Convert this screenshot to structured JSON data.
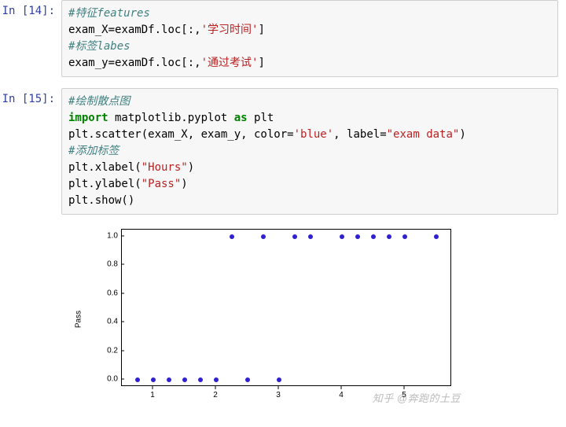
{
  "cells": [
    {
      "prompt": "In [14]:",
      "lines": [
        [
          {
            "t": "#特征features",
            "c": "c-comment"
          }
        ],
        [
          {
            "t": "exam_X",
            "c": "c-def"
          },
          {
            "t": "=",
            "c": "c-def"
          },
          {
            "t": "examDf.loc[:,",
            "c": "c-def"
          },
          {
            "t": "'学习时间'",
            "c": "c-str"
          },
          {
            "t": "]",
            "c": "c-def"
          }
        ],
        [
          {
            "t": "#标签labes",
            "c": "c-comment"
          }
        ],
        [
          {
            "t": "exam_y",
            "c": "c-def"
          },
          {
            "t": "=",
            "c": "c-def"
          },
          {
            "t": "examDf.loc[:,",
            "c": "c-def"
          },
          {
            "t": "'通过考试'",
            "c": "c-str"
          },
          {
            "t": "]",
            "c": "c-def"
          }
        ]
      ]
    },
    {
      "prompt": "In [15]:",
      "lines": [
        [
          {
            "t": "#绘制散点图",
            "c": "c-comment"
          }
        ],
        [
          {
            "t": "import",
            "c": "c-kw"
          },
          {
            "t": " matplotlib.pyplot ",
            "c": "c-def"
          },
          {
            "t": "as",
            "c": "c-kw"
          },
          {
            "t": " plt",
            "c": "c-def"
          }
        ],
        [
          {
            "t": "plt.scatter(exam_X, exam_y, color",
            "c": "c-def"
          },
          {
            "t": "=",
            "c": "c-def"
          },
          {
            "t": "'blue'",
            "c": "c-str"
          },
          {
            "t": ", label",
            "c": "c-def"
          },
          {
            "t": "=",
            "c": "c-def"
          },
          {
            "t": "\"exam data\"",
            "c": "c-str"
          },
          {
            "t": ")",
            "c": "c-def"
          }
        ],
        [
          {
            "t": "#添加标签",
            "c": "c-comment"
          }
        ],
        [
          {
            "t": "plt.xlabel(",
            "c": "c-def"
          },
          {
            "t": "\"Hours\"",
            "c": "c-str"
          },
          {
            "t": ")",
            "c": "c-def"
          }
        ],
        [
          {
            "t": "plt.ylabel(",
            "c": "c-def"
          },
          {
            "t": "\"Pass\"",
            "c": "c-str"
          },
          {
            "t": ")",
            "c": "c-def"
          }
        ],
        [
          {
            "t": "plt.show()",
            "c": "c-def"
          }
        ]
      ]
    }
  ],
  "chart": {
    "type": "scatter",
    "ylabel": "Pass",
    "xlim": [
      0.5,
      5.75
    ],
    "ylim": [
      -0.05,
      1.05
    ],
    "xticks": [
      1,
      2,
      3,
      4,
      5
    ],
    "yticks": [
      0.0,
      0.2,
      0.4,
      0.6,
      0.8,
      1.0
    ],
    "ytick_labels": [
      "0.0",
      "0.2",
      "0.4",
      "0.6",
      "0.8",
      "1.0"
    ],
    "xtick_labels": [
      "1",
      "2",
      "3",
      "4",
      "5"
    ],
    "dot_color": "#3020d0",
    "dot_size": 6,
    "border_color": "#000000",
    "background_color": "#ffffff",
    "label_fontsize": 10,
    "points": [
      {
        "x": 0.75,
        "y": 0
      },
      {
        "x": 1.0,
        "y": 0
      },
      {
        "x": 1.25,
        "y": 0
      },
      {
        "x": 1.5,
        "y": 0
      },
      {
        "x": 1.75,
        "y": 0
      },
      {
        "x": 2.0,
        "y": 0
      },
      {
        "x": 2.5,
        "y": 0
      },
      {
        "x": 3.0,
        "y": 0
      },
      {
        "x": 2.25,
        "y": 1
      },
      {
        "x": 2.75,
        "y": 1
      },
      {
        "x": 3.25,
        "y": 1
      },
      {
        "x": 3.5,
        "y": 1
      },
      {
        "x": 4.0,
        "y": 1
      },
      {
        "x": 4.25,
        "y": 1
      },
      {
        "x": 4.5,
        "y": 1
      },
      {
        "x": 4.75,
        "y": 1
      },
      {
        "x": 5.0,
        "y": 1
      },
      {
        "x": 5.5,
        "y": 1
      }
    ]
  },
  "watermark": "知乎 @奔跑的土豆"
}
